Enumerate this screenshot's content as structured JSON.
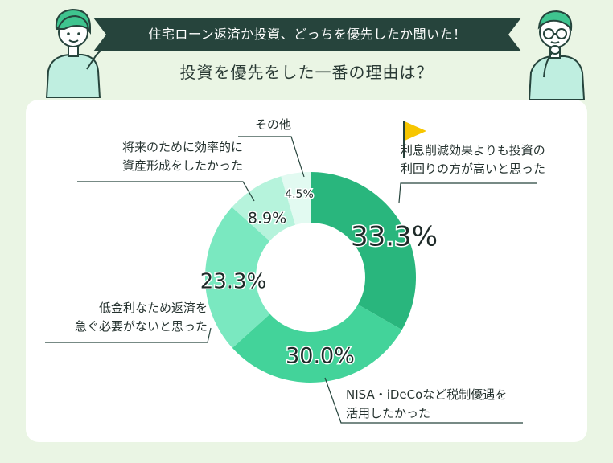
{
  "header": {
    "ribbon_text": "住宅ローン返済か投資、どっちを優先したか聞いた！",
    "subtitle": "投資を優先をした一番の理由は？"
  },
  "colors": {
    "background": "#eaf5e4",
    "ribbon": "#26443c",
    "slice_1": "#29b67d",
    "slice_2": "#43d39a",
    "slice_3": "#7ae8c0",
    "slice_4": "#b6f3dc",
    "slice_5": "#e2faf1",
    "flag": "#f7c600"
  },
  "chart_data": {
    "type": "pie",
    "donut": true,
    "title": "投資を優先をした一番の理由は？",
    "slices": [
      {
        "label_lines": [
          "利息削減効果よりも投資の",
          "利回りの方が高いと思った"
        ],
        "value": 33.3,
        "display": "33.3%"
      },
      {
        "label_lines": [
          "NISA・iDeCoなど税制優遇を",
          "活用したかった"
        ],
        "value": 30.0,
        "display": "30.0%"
      },
      {
        "label_lines": [
          "低金利なため返済を",
          "急ぐ必要がないと思った"
        ],
        "value": 23.3,
        "display": "23.3%"
      },
      {
        "label_lines": [
          "将来のために効率的に",
          "資産形成をしたかった"
        ],
        "value": 8.9,
        "display": "8.9%"
      },
      {
        "label_lines": [
          "その他"
        ],
        "value": 4.5,
        "display": "4.5%"
      }
    ]
  }
}
